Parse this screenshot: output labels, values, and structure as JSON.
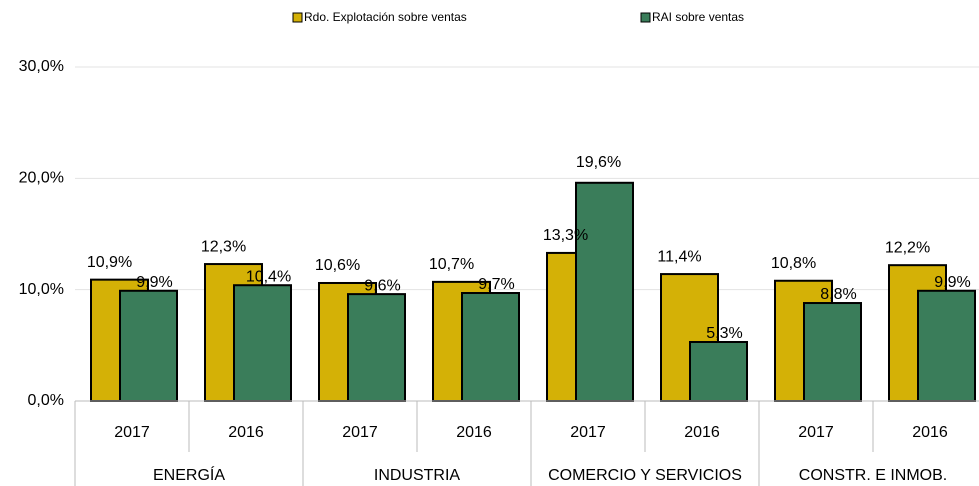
{
  "chart_data": {
    "type": "bar",
    "categories": [
      "2017",
      "2016",
      "2017",
      "2016",
      "2017",
      "2016",
      "2017",
      "2016"
    ],
    "groups": [
      "ENERGÍA",
      "INDUSTRIA",
      "COMERCIO Y SERVICIOS",
      "CONSTR. E INMOB."
    ],
    "series": [
      {
        "name": "Rdo. Explotación sobre ventas",
        "color": "#d4b106",
        "values": [
          10.9,
          12.3,
          10.6,
          10.7,
          13.3,
          11.4,
          10.8,
          12.2
        ],
        "value_labels": [
          "10,9%",
          "12,3%",
          "10,6%",
          "10,7%",
          "13,3%",
          "11,4%",
          "10,8%",
          "12,2%"
        ]
      },
      {
        "name": "RAI sobre ventas",
        "color": "#3a7d5a",
        "values": [
          9.9,
          10.4,
          9.6,
          9.7,
          19.6,
          5.3,
          8.8,
          9.9
        ],
        "value_labels": [
          "9,9%",
          "10,4%",
          "9,6%",
          "9,7%",
          "19,6%",
          "5,3%",
          "8,8%",
          "9,9%"
        ]
      }
    ],
    "ylim": [
      0,
      30
    ],
    "yticks": [
      {
        "value": 0,
        "label": "0,0%"
      },
      {
        "value": 10,
        "label": "10,0%"
      },
      {
        "value": 20,
        "label": "20,0%"
      },
      {
        "value": 30,
        "label": "30,0%"
      }
    ],
    "grid": true,
    "legend": "top"
  }
}
